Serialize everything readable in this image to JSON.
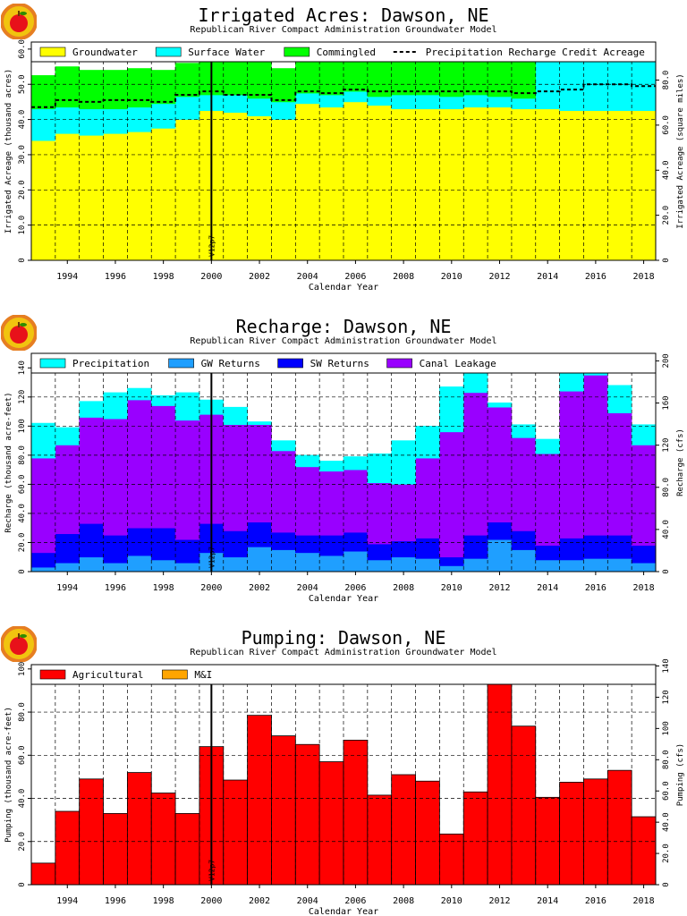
{
  "colors": {
    "groundwater": "#ffff00",
    "surface_water": "#00ffff",
    "commingled": "#00ff00",
    "precipitation": "#00ffff",
    "gw_returns": "#1f9fff",
    "sw_returns": "#0000ff",
    "canal_leakage": "#9900ff",
    "agricultural": "#ff0000",
    "mi": "#ffa500",
    "grid": "#000000",
    "logo_outer": "#f1c40f",
    "logo_ring": "#e67e22",
    "apple": "#e8111a"
  },
  "chart_data": [
    {
      "type": "area",
      "stacked": true,
      "step": true,
      "title": "Irrigated Acres: Dawson, NE",
      "subtitle": "Republican River Compact Administration Groundwater Model",
      "xlabel": "Calendar Year",
      "ylabel": "Irrigated Acreage (thousand acres)",
      "ylabel_right": "Irrigated Acreage (square miles)",
      "xlim": [
        1993,
        2019
      ],
      "ylim": [
        0,
        62
      ],
      "yticks": [
        0,
        10.0,
        20.0,
        30.0,
        40.0,
        50.0,
        60.0
      ],
      "yticks_right": [
        0,
        20.0,
        40.0,
        60.0,
        80.0
      ],
      "right_factor": 1.5625,
      "xticks": [
        1994,
        1996,
        1998,
        2000,
        2002,
        2004,
        2006,
        2008,
        2010,
        2012,
        2014,
        2016,
        2018
      ],
      "grid": true,
      "legend_position": "top",
      "vline": {
        "x": 2000.5,
        "label": "V12p7"
      },
      "years": [
        1993,
        1994,
        1995,
        1996,
        1997,
        1998,
        1999,
        2000,
        2001,
        2002,
        2003,
        2004,
        2005,
        2006,
        2007,
        2008,
        2009,
        2010,
        2011,
        2012,
        2013,
        2014,
        2015,
        2016,
        2017,
        2018
      ],
      "series": [
        {
          "name": "Groundwater",
          "color_key": "groundwater",
          "values": [
            34,
            36,
            35.5,
            36,
            36.5,
            37.5,
            40,
            42.5,
            42,
            41,
            40,
            44.5,
            43.5,
            45,
            44,
            43,
            43,
            43,
            43.5,
            43.5,
            43,
            43,
            42.5,
            42.5,
            42.5,
            42.5
          ]
        },
        {
          "name": "Surface Water",
          "color_key": "surface_water",
          "values": [
            9,
            7.5,
            7.5,
            7,
            7,
            7,
            6.5,
            4.5,
            5,
            5,
            5,
            3,
            3.5,
            3,
            2.5,
            4,
            4,
            3.5,
            3.5,
            3,
            3,
            16,
            17,
            17,
            17,
            17
          ]
        },
        {
          "name": "Commingled",
          "color_key": "commingled",
          "values": [
            9.5,
            11.5,
            11,
            11,
            11,
            9.5,
            9.5,
            11.5,
            11,
            10.5,
            9.5,
            13,
            13,
            13,
            14,
            13.5,
            13.5,
            14,
            13.5,
            14,
            14.5,
            0,
            0,
            0,
            0,
            0
          ]
        }
      ],
      "lines": [
        {
          "name": "Precipitation Recharge Credit Acreage",
          "style": "dashed",
          "values": [
            43.5,
            45.5,
            45,
            45.5,
            45.5,
            45,
            47,
            48,
            47,
            47,
            45.5,
            48,
            47.5,
            48.5,
            48,
            48,
            48,
            48,
            48,
            48,
            47.5,
            48,
            48.5,
            50,
            50,
            49.5
          ]
        }
      ]
    },
    {
      "type": "area",
      "stacked": true,
      "step": true,
      "title": "Recharge: Dawson, NE",
      "subtitle": "Republican River Compact Administration Groundwater Model",
      "xlabel": "Calendar Year",
      "ylabel": "Recharge (thousand acre-feet)",
      "ylabel_right": "Recharge (cfs)",
      "xlim": [
        1993,
        2019
      ],
      "ylim": [
        0,
        150
      ],
      "yticks": [
        0,
        20,
        40,
        60,
        80,
        100,
        120,
        140
      ],
      "yticks_right": [
        0,
        40.0,
        80.0,
        120,
        160,
        200
      ],
      "right_factor": 1.381,
      "xticks": [
        1994,
        1996,
        1998,
        2000,
        2002,
        2004,
        2006,
        2008,
        2010,
        2012,
        2014,
        2016,
        2018
      ],
      "grid": true,
      "legend_position": "top",
      "vline": {
        "x": 2000.5,
        "label": "V12p7"
      },
      "years": [
        1993,
        1994,
        1995,
        1996,
        1997,
        1998,
        1999,
        2000,
        2001,
        2002,
        2003,
        2004,
        2005,
        2006,
        2007,
        2008,
        2009,
        2010,
        2011,
        2012,
        2013,
        2014,
        2015,
        2016,
        2017,
        2018
      ],
      "series": [
        {
          "name": "GW Returns",
          "color_key": "gw_returns",
          "values": [
            3,
            6,
            10,
            6,
            11,
            8,
            6,
            13,
            10,
            17,
            15,
            13,
            11,
            14,
            8,
            10,
            9,
            4,
            9,
            22,
            15,
            8,
            8,
            9,
            9,
            6
          ]
        },
        {
          "name": "SW Returns",
          "color_key": "sw_returns",
          "values": [
            10,
            20,
            23,
            19,
            19,
            22,
            16,
            20,
            18,
            17,
            12,
            12,
            14,
            13,
            11,
            11,
            14,
            6,
            16,
            12,
            13,
            10,
            15,
            16,
            16,
            12
          ]
        },
        {
          "name": "Canal Leakage",
          "color_key": "canal_leakage",
          "values": [
            65,
            61,
            73,
            80,
            88,
            84,
            82,
            75,
            73,
            67,
            56,
            47,
            44,
            43,
            42,
            39,
            55,
            86,
            98,
            79,
            64,
            63,
            101,
            110,
            84,
            69
          ]
        },
        {
          "name": "Precipitation",
          "color_key": "precipitation",
          "values": [
            24,
            12,
            11,
            18,
            8,
            7,
            19,
            10,
            12,
            2,
            7,
            8,
            7,
            9,
            20,
            30,
            22,
            31,
            13,
            3,
            9,
            10,
            16,
            15,
            19,
            14
          ]
        }
      ]
    },
    {
      "type": "bar",
      "stacked": true,
      "title": "Pumping: Dawson, NE",
      "subtitle": "Republican River Compact Administration Groundwater Model",
      "xlabel": "Calendar Year",
      "ylabel": "Pumping (thousand acre-feet)",
      "ylabel_right": "Pumping (cfs)",
      "xlim": [
        1993,
        2019
      ],
      "ylim": [
        0,
        102
      ],
      "yticks": [
        0,
        20.0,
        40.0,
        60.0,
        80.0,
        100
      ],
      "yticks_right": [
        0,
        20.0,
        40.0,
        60.0,
        80.0,
        100,
        120,
        140
      ],
      "right_factor": 1.381,
      "xticks": [
        1994,
        1996,
        1998,
        2000,
        2002,
        2004,
        2006,
        2008,
        2010,
        2012,
        2014,
        2016,
        2018
      ],
      "grid": true,
      "legend_position": "top",
      "vline": {
        "x": 2000.5,
        "label": "V12p7"
      },
      "years": [
        1993,
        1994,
        1995,
        1996,
        1997,
        1998,
        1999,
        2000,
        2001,
        2002,
        2003,
        2004,
        2005,
        2006,
        2007,
        2008,
        2009,
        2010,
        2011,
        2012,
        2013,
        2014,
        2015,
        2016,
        2017,
        2018
      ],
      "series": [
        {
          "name": "Agricultural",
          "color_key": "agricultural",
          "values": [
            10,
            34,
            49,
            33,
            52,
            42.5,
            33,
            64,
            48.5,
            78.5,
            69,
            65,
            57,
            67,
            41.5,
            51,
            48,
            23.5,
            43,
            101,
            73.5,
            40.5,
            47.5,
            49,
            53,
            31.5
          ]
        },
        {
          "name": "M&I",
          "color_key": "mi",
          "values": [
            0,
            0,
            0,
            0,
            0,
            0,
            0,
            0,
            0,
            0,
            0,
            0,
            0,
            0,
            0,
            0,
            0,
            0,
            0,
            0,
            0,
            0,
            0,
            0,
            0,
            0
          ]
        }
      ]
    }
  ]
}
